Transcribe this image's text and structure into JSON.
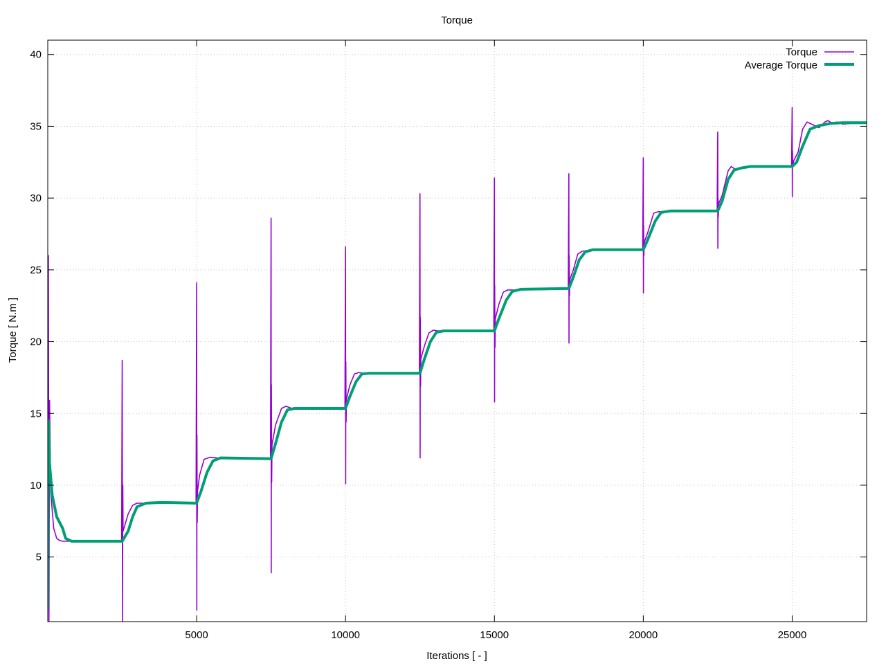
{
  "chart_data": {
    "type": "line",
    "title": "Torque",
    "xlabel": "Iterations [ - ]",
    "ylabel": "Torque [ N.m ]",
    "xlim": [
      0,
      27500
    ],
    "ylim": [
      0.5,
      41
    ],
    "grid": true,
    "legend_position": "top-right",
    "x_ticks": [
      5000,
      10000,
      15000,
      20000,
      25000
    ],
    "y_ticks": [
      5,
      10,
      15,
      20,
      25,
      30,
      35,
      40
    ],
    "colors": {
      "torque": "#9400d3",
      "average": "#009e73",
      "grid": "#c8c8c8",
      "axis": "#000000"
    },
    "series": [
      {
        "name": "Torque",
        "color": "#9400d3",
        "points": [
          [
            0,
            1.5
          ],
          [
            20,
            26.0
          ],
          [
            40,
            0.5
          ],
          [
            60,
            15.9
          ],
          [
            100,
            9.5
          ],
          [
            200,
            7.0
          ],
          [
            300,
            6.3
          ],
          [
            400,
            6.15
          ],
          [
            500,
            6.1
          ],
          [
            2480,
            6.1
          ],
          [
            2500,
            18.7
          ],
          [
            2510,
            0.5
          ],
          [
            2520,
            10.0
          ],
          [
            2530,
            6.8
          ],
          [
            2700,
            8.0
          ],
          [
            2850,
            8.6
          ],
          [
            3000,
            8.75
          ],
          [
            4980,
            8.75
          ],
          [
            5000,
            24.1
          ],
          [
            5005,
            1.3
          ],
          [
            5010,
            13.5
          ],
          [
            5020,
            7.4
          ],
          [
            5030,
            9.6
          ],
          [
            5100,
            10.7
          ],
          [
            5250,
            11.8
          ],
          [
            5450,
            11.95
          ],
          [
            5700,
            11.9
          ],
          [
            7480,
            11.85
          ],
          [
            7500,
            28.6
          ],
          [
            7505,
            3.9
          ],
          [
            7510,
            17.0
          ],
          [
            7520,
            10.2
          ],
          [
            7530,
            12.8
          ],
          [
            7650,
            14.2
          ],
          [
            7850,
            15.35
          ],
          [
            8000,
            15.5
          ],
          [
            8200,
            15.35
          ],
          [
            9980,
            15.35
          ],
          [
            10000,
            26.6
          ],
          [
            10005,
            10.1
          ],
          [
            10010,
            18.6
          ],
          [
            10020,
            14.4
          ],
          [
            10030,
            16.0
          ],
          [
            10150,
            17.0
          ],
          [
            10300,
            17.75
          ],
          [
            10450,
            17.85
          ],
          [
            10600,
            17.8
          ],
          [
            12480,
            17.8
          ],
          [
            12500,
            30.3
          ],
          [
            12505,
            11.9
          ],
          [
            12510,
            21.7
          ],
          [
            12520,
            16.9
          ],
          [
            12530,
            18.8
          ],
          [
            12650,
            19.7
          ],
          [
            12800,
            20.6
          ],
          [
            12950,
            20.8
          ],
          [
            13100,
            20.75
          ],
          [
            14980,
            20.75
          ],
          [
            15000,
            31.4
          ],
          [
            15005,
            15.8
          ],
          [
            15010,
            23.9
          ],
          [
            15020,
            19.6
          ],
          [
            15030,
            21.6
          ],
          [
            15150,
            22.6
          ],
          [
            15300,
            23.45
          ],
          [
            15450,
            23.6
          ],
          [
            15600,
            23.6
          ],
          [
            17480,
            23.65
          ],
          [
            17500,
            31.7
          ],
          [
            17505,
            19.9
          ],
          [
            17510,
            26.0
          ],
          [
            17520,
            23.2
          ],
          [
            17530,
            24.3
          ],
          [
            17650,
            25.0
          ],
          [
            17800,
            26.1
          ],
          [
            17950,
            26.3
          ],
          [
            18150,
            26.35
          ],
          [
            19980,
            26.4
          ],
          [
            20000,
            32.8
          ],
          [
            20005,
            23.4
          ],
          [
            20010,
            28.1
          ],
          [
            20020,
            26.0
          ],
          [
            20030,
            26.9
          ],
          [
            20150,
            27.6
          ],
          [
            20350,
            28.95
          ],
          [
            20500,
            29.05
          ],
          [
            20700,
            29.05
          ],
          [
            22480,
            29.1
          ],
          [
            22500,
            34.6
          ],
          [
            22505,
            26.5
          ],
          [
            22510,
            30.0
          ],
          [
            22520,
            28.7
          ],
          [
            22530,
            29.6
          ],
          [
            22650,
            30.2
          ],
          [
            22850,
            31.9
          ],
          [
            22950,
            32.2
          ],
          [
            23100,
            32.0
          ],
          [
            23300,
            32.05
          ],
          [
            23450,
            32.2
          ],
          [
            23600,
            32.15
          ],
          [
            24980,
            32.15
          ],
          [
            25000,
            36.3
          ],
          [
            25005,
            30.1
          ],
          [
            25010,
            33.3
          ],
          [
            25020,
            32.2
          ],
          [
            25050,
            32.6
          ],
          [
            25200,
            33.2
          ],
          [
            25350,
            34.8
          ],
          [
            25500,
            35.3
          ],
          [
            25700,
            35.1
          ],
          [
            25900,
            34.9
          ],
          [
            26100,
            35.3
          ],
          [
            26200,
            35.4
          ],
          [
            26350,
            35.2
          ],
          [
            26500,
            35.3
          ],
          [
            26700,
            35.15
          ],
          [
            27000,
            35.2
          ],
          [
            27500,
            35.2
          ]
        ]
      },
      {
        "name": "Average Torque",
        "color": "#009e73",
        "points": [
          [
            0,
            1.5
          ],
          [
            20,
            14.5
          ],
          [
            60,
            11.5
          ],
          [
            150,
            9.3
          ],
          [
            300,
            7.8
          ],
          [
            450,
            7.2
          ],
          [
            500,
            7.0
          ],
          [
            600,
            6.3
          ],
          [
            800,
            6.1
          ],
          [
            2500,
            6.1
          ],
          [
            2700,
            6.8
          ],
          [
            2850,
            7.8
          ],
          [
            3000,
            8.5
          ],
          [
            3300,
            8.75
          ],
          [
            3800,
            8.8
          ],
          [
            5000,
            8.75
          ],
          [
            5150,
            9.6
          ],
          [
            5350,
            10.9
          ],
          [
            5550,
            11.7
          ],
          [
            5800,
            11.9
          ],
          [
            7500,
            11.85
          ],
          [
            7650,
            12.9
          ],
          [
            7850,
            14.4
          ],
          [
            8050,
            15.25
          ],
          [
            8300,
            15.35
          ],
          [
            10000,
            15.35
          ],
          [
            10150,
            16.2
          ],
          [
            10350,
            17.2
          ],
          [
            10550,
            17.75
          ],
          [
            10800,
            17.8
          ],
          [
            12500,
            17.8
          ],
          [
            12650,
            18.8
          ],
          [
            12850,
            20.0
          ],
          [
            13050,
            20.65
          ],
          [
            13300,
            20.75
          ],
          [
            15000,
            20.75
          ],
          [
            15150,
            21.6
          ],
          [
            15400,
            22.9
          ],
          [
            15600,
            23.5
          ],
          [
            15900,
            23.65
          ],
          [
            17500,
            23.7
          ],
          [
            17650,
            24.5
          ],
          [
            17850,
            25.7
          ],
          [
            18050,
            26.25
          ],
          [
            18300,
            26.4
          ],
          [
            20000,
            26.4
          ],
          [
            20150,
            27.1
          ],
          [
            20400,
            28.4
          ],
          [
            20600,
            29.0
          ],
          [
            20900,
            29.1
          ],
          [
            22500,
            29.1
          ],
          [
            22650,
            29.8
          ],
          [
            22850,
            31.3
          ],
          [
            23050,
            31.95
          ],
          [
            23300,
            32.1
          ],
          [
            23600,
            32.2
          ],
          [
            25000,
            32.2
          ],
          [
            25150,
            32.5
          ],
          [
            25350,
            33.6
          ],
          [
            25600,
            34.8
          ],
          [
            25900,
            35.05
          ],
          [
            26300,
            35.2
          ],
          [
            26700,
            35.25
          ],
          [
            27500,
            35.25
          ]
        ]
      }
    ]
  }
}
